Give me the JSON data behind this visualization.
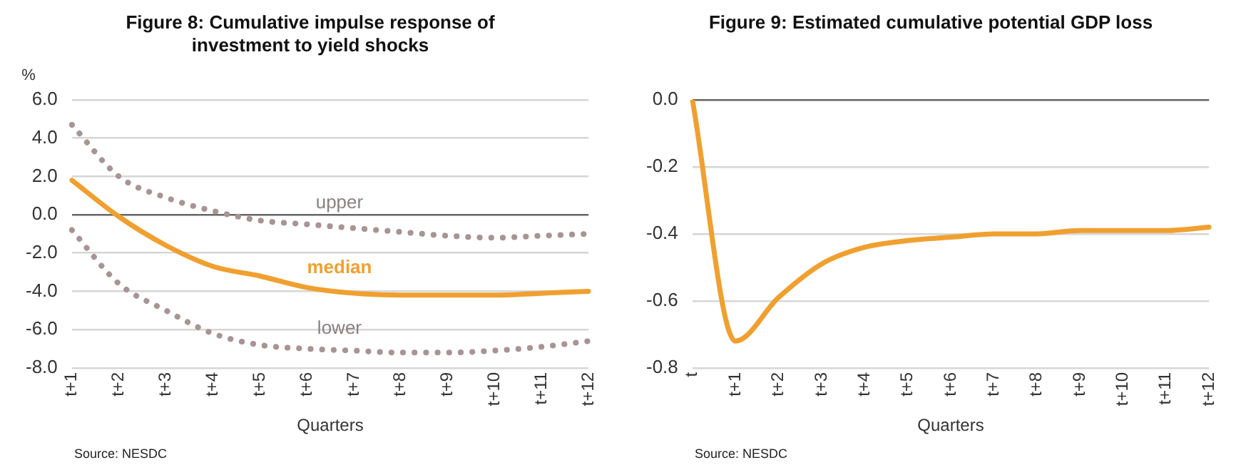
{
  "chart_data": [
    {
      "type": "line",
      "title": "Figure 8: Cumulative impulse response of investment to yield shocks",
      "ylabel": "%",
      "xlabel": "Quarters",
      "categories": [
        "t+1",
        "t+2",
        "t+3",
        "t+4",
        "t+5",
        "t+6",
        "t+7",
        "t+8",
        "t+9",
        "t+10",
        "t+11",
        "t+12"
      ],
      "series": [
        {
          "name": "upper",
          "color": "#a89494",
          "line_style": "dotted",
          "values": [
            4.7,
            2.0,
            0.9,
            0.2,
            -0.3,
            -0.5,
            -0.7,
            -0.9,
            -1.1,
            -1.2,
            -1.1,
            -1.0
          ]
        },
        {
          "name": "median",
          "color": "#f0a030",
          "line_style": "solid",
          "values": [
            1.8,
            -0.1,
            -1.6,
            -2.7,
            -3.2,
            -3.8,
            -4.1,
            -4.2,
            -4.2,
            -4.2,
            -4.1,
            -4.0
          ]
        },
        {
          "name": "lower",
          "color": "#a89494",
          "line_style": "dotted",
          "values": [
            -0.8,
            -3.6,
            -5.0,
            -6.2,
            -6.8,
            -7.0,
            -7.1,
            -7.2,
            -7.2,
            -7.1,
            -6.9,
            -6.6
          ]
        }
      ],
      "ylim": [
        -8,
        6
      ],
      "yticks": [
        {
          "value": -8,
          "label": "-8.0"
        },
        {
          "value": -6,
          "label": "-6.0"
        },
        {
          "value": -4,
          "label": "-4.0"
        },
        {
          "value": -2,
          "label": "-2.0"
        },
        {
          "value": 0,
          "label": "0.0"
        },
        {
          "value": 2,
          "label": "2.0"
        },
        {
          "value": 4,
          "label": "4.0"
        },
        {
          "value": 6,
          "label": "6.0"
        }
      ],
      "grid": "y",
      "legend": false,
      "marker": "none",
      "annotations": [
        "Source: NESDC"
      ]
    },
    {
      "type": "line",
      "title": "Figure 9: Estimated cumulative potential GDP loss",
      "xlabel": "Quarters",
      "categories": [
        "t",
        "t+1",
        "t+2",
        "t+3",
        "t+4",
        "t+5",
        "t+6",
        "t+7",
        "t+8",
        "t+9",
        "t+10",
        "t+11",
        "t+12"
      ],
      "series": [
        {
          "color": "#f0a030",
          "line_style": "solid",
          "values": [
            0,
            -0.72,
            -0.59,
            -0.49,
            -0.44,
            -0.42,
            -0.41,
            -0.4,
            -0.4,
            -0.39,
            -0.39,
            -0.39,
            -0.38
          ]
        }
      ],
      "ylim": [
        -0.8,
        0
      ],
      "yticks": [
        {
          "value": -0.8,
          "label": "-0.8"
        },
        {
          "value": -0.6,
          "label": "-0.6"
        },
        {
          "value": -0.4,
          "label": "-0.4"
        },
        {
          "value": -0.2,
          "label": "-0.2"
        },
        {
          "value": 0,
          "label": "0.0"
        }
      ],
      "grid": "y",
      "legend": false,
      "marker": "none",
      "annotations": [
        "Source: NESDC"
      ]
    }
  ]
}
